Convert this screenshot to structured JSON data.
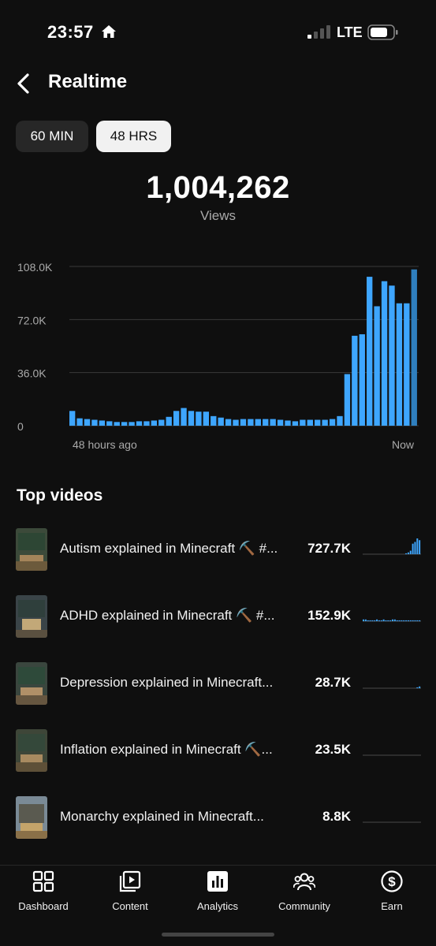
{
  "status": {
    "time": "23:57",
    "network": "LTE"
  },
  "header": {
    "title": "Realtime"
  },
  "toggles": {
    "min60": "60 MIN",
    "hrs48": "48 HRS",
    "selected": "48 HRS"
  },
  "summary": {
    "total": "1,004,262",
    "label": "Views"
  },
  "chart_data": {
    "type": "bar",
    "y_ticks": [
      "108.0K",
      "72.0K",
      "36.0K",
      "0"
    ],
    "ylim": [
      0,
      108000
    ],
    "x_labels": [
      "48 hours ago",
      "Now"
    ],
    "values": [
      10000,
      5000,
      4500,
      4000,
      3500,
      3000,
      2500,
      2500,
      2500,
      3000,
      3000,
      3500,
      4000,
      6000,
      10000,
      12000,
      10000,
      9500,
      9500,
      6500,
      5500,
      4500,
      4000,
      4500,
      4500,
      4500,
      4500,
      4500,
      4000,
      3500,
      3000,
      4000,
      4000,
      4000,
      4000,
      4500,
      6500,
      35000,
      61000,
      62000,
      101000,
      81000,
      98000,
      95000,
      83000,
      83000,
      106000
    ],
    "accent_color": "#3ea6ff"
  },
  "top_videos": {
    "title": "Top videos",
    "items": [
      {
        "title": "Autism explained in Minecraft ⛏️ #...",
        "views": "727.7K",
        "spark": [
          0,
          0,
          0,
          0,
          0,
          0,
          0,
          0,
          0,
          0,
          0,
          0,
          0,
          0,
          0,
          0,
          0,
          0,
          0,
          1,
          2,
          4,
          12,
          14,
          18,
          16
        ]
      },
      {
        "title": "ADHD explained in Minecraft ⛏️ #...",
        "views": "152.9K",
        "spark": [
          2,
          2,
          1,
          1,
          1,
          1,
          2,
          1,
          1,
          2,
          1,
          1,
          1,
          2,
          2,
          1,
          1,
          1,
          1,
          1,
          1,
          1,
          1,
          1,
          1,
          1
        ]
      },
      {
        "title": "Depression explained in Minecraft...",
        "views": "28.7K",
        "spark": [
          0,
          0,
          0,
          0,
          0,
          0,
          0,
          0,
          0,
          0,
          0,
          0,
          0,
          0,
          0,
          0,
          0,
          0,
          0,
          0,
          0,
          0,
          0,
          0,
          1,
          2
        ]
      },
      {
        "title": "Inflation explained in Minecraft ⛏️...",
        "views": "23.5K",
        "spark": [
          0,
          0,
          0,
          0,
          0,
          0,
          0,
          0,
          0,
          0,
          0,
          0,
          0,
          0,
          0,
          0,
          0,
          0,
          0,
          0,
          0,
          0,
          0,
          0,
          0,
          0
        ]
      },
      {
        "title": "Monarchy explained in Minecraft...",
        "views": "8.8K",
        "spark": [
          0,
          0,
          0,
          0,
          0,
          0,
          0,
          0,
          0,
          0,
          0,
          0,
          0,
          0,
          0,
          0,
          0,
          0,
          0,
          0,
          0,
          0,
          0,
          0,
          0,
          0
        ]
      }
    ]
  },
  "nav": {
    "items": [
      {
        "label": "Dashboard",
        "icon": "dashboard-icon"
      },
      {
        "label": "Content",
        "icon": "content-icon"
      },
      {
        "label": "Analytics",
        "icon": "analytics-icon"
      },
      {
        "label": "Community",
        "icon": "community-icon"
      },
      {
        "label": "Earn",
        "icon": "earn-icon"
      }
    ],
    "active": "Analytics"
  }
}
